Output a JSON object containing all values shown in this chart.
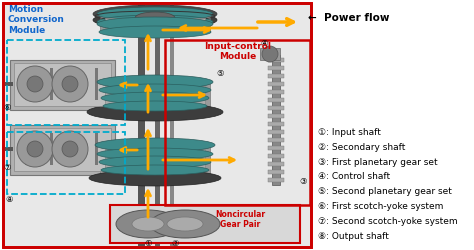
{
  "background_color": "#ffffff",
  "legend_items": [
    "①: Input shaft",
    "②: Secondary shaft",
    "③: First planetary gear set",
    "④: Control shaft",
    "⑤: Second planetary gear set",
    "⑥: First scotch-yoke system",
    "⑦: Second scotch-yoke system",
    "⑧: Output shaft"
  ],
  "labels": {
    "power_flow": "←  Power flow",
    "motion_conversion": "Motion\nConversion\nModule",
    "input_control": "Input-control\nModule",
    "noncircular": "Noncircular\nGear Pair"
  },
  "colors": {
    "red": "#cc0000",
    "blue_dash": "#00aacc",
    "arrow": "#ffaa00",
    "gear_teal": "#3d8a8a",
    "gear_dark": "#2a5a5a",
    "shaft": "#666666",
    "shaft_dark": "#444444",
    "body_gray": "#aaaaaa",
    "body_light": "#cccccc",
    "body_dark": "#888888",
    "motion_label": "#1166cc",
    "input_label": "#cc0000",
    "noncircular_label": "#cc0000"
  },
  "figsize": [
    4.74,
    2.5
  ],
  "dpi": 100
}
